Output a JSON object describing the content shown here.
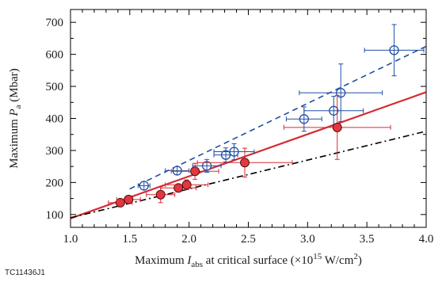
{
  "figure_id": "TC11436J1",
  "chart_data": {
    "type": "scatter",
    "xlabel": {
      "prefix": "Maximum ",
      "var": "I",
      "sub": "abs",
      "suffix_pre": " at critical surface (×10",
      "sup": "15",
      "suffix_mid": " W/cm",
      "sup2": "2",
      "suffix_post": ")"
    },
    "ylabel": {
      "prefix": "Maximum ",
      "var": "P",
      "sub": "a",
      "suffix": " (Mbar)"
    },
    "xlim": [
      1.0,
      4.0
    ],
    "ylim": [
      60,
      740
    ],
    "x_ticks": [
      "1.0",
      "1.5",
      "2.0",
      "2.5",
      "3.0",
      "3.5",
      "4.0"
    ],
    "y_ticks": [
      "100",
      "200",
      "300",
      "400",
      "500",
      "600",
      "700"
    ],
    "colors": {
      "blue": "#1f4ea3",
      "red": "#d62b33",
      "red_fill": "#e0383e",
      "black": "#000000"
    },
    "series": [
      {
        "marker": "open-circle-crosshair",
        "color": "blue",
        "points": [
          {
            "x": 1.62,
            "y": 190,
            "xerr": 0.05,
            "yerr": 8
          },
          {
            "x": 1.9,
            "y": 237,
            "xerr": 0.1,
            "yerr": 12
          },
          {
            "x": 2.15,
            "y": 252,
            "xerr": 0.12,
            "yerr": 20
          },
          {
            "x": 2.31,
            "y": 286,
            "xerr": 0.1,
            "yerr": 22
          },
          {
            "x": 2.38,
            "y": 296,
            "xerr": 0.17,
            "yerr": 25
          },
          {
            "x": 2.97,
            "y": 398,
            "xerr": 0.15,
            "yerr": 38
          },
          {
            "x": 3.22,
            "y": 424,
            "xerr": 0.25,
            "yerr": 45
          },
          {
            "x": 3.28,
            "y": 480,
            "xerr": 0.35,
            "yerr": 90
          },
          {
            "x": 3.73,
            "y": 613,
            "xerr": 0.25,
            "yerr": 80
          }
        ]
      },
      {
        "marker": "filled-circle",
        "color": "red",
        "points": [
          {
            "x": 1.42,
            "y": 137,
            "xerr": 0.1,
            "yerr": 8
          },
          {
            "x": 1.49,
            "y": 147,
            "xerr": 0.1,
            "yerr": 8
          },
          {
            "x": 1.76,
            "y": 162,
            "xerr": 0.12,
            "yerr": 25
          },
          {
            "x": 1.91,
            "y": 183,
            "xerr": 0.15,
            "yerr": 12
          },
          {
            "x": 1.98,
            "y": 193,
            "xerr": 0.18,
            "yerr": 15
          },
          {
            "x": 2.05,
            "y": 235,
            "xerr": 0.2,
            "yerr": 25
          },
          {
            "x": 2.47,
            "y": 262,
            "xerr": 0.4,
            "yerr": 45
          },
          {
            "x": 3.25,
            "y": 372,
            "xerr": 0.45,
            "yerr": 100
          }
        ]
      }
    ],
    "fit_lines": [
      {
        "style": "dashed",
        "color": "blue",
        "from": [
          1.5,
          180
        ],
        "to": [
          4.0,
          625
        ]
      },
      {
        "style": "solid",
        "color": "red",
        "from": [
          1.0,
          88
        ],
        "to": [
          4.0,
          482
        ]
      },
      {
        "style": "dash-dot",
        "color": "black",
        "from": [
          1.0,
          90
        ],
        "to": [
          4.0,
          360
        ]
      }
    ]
  }
}
